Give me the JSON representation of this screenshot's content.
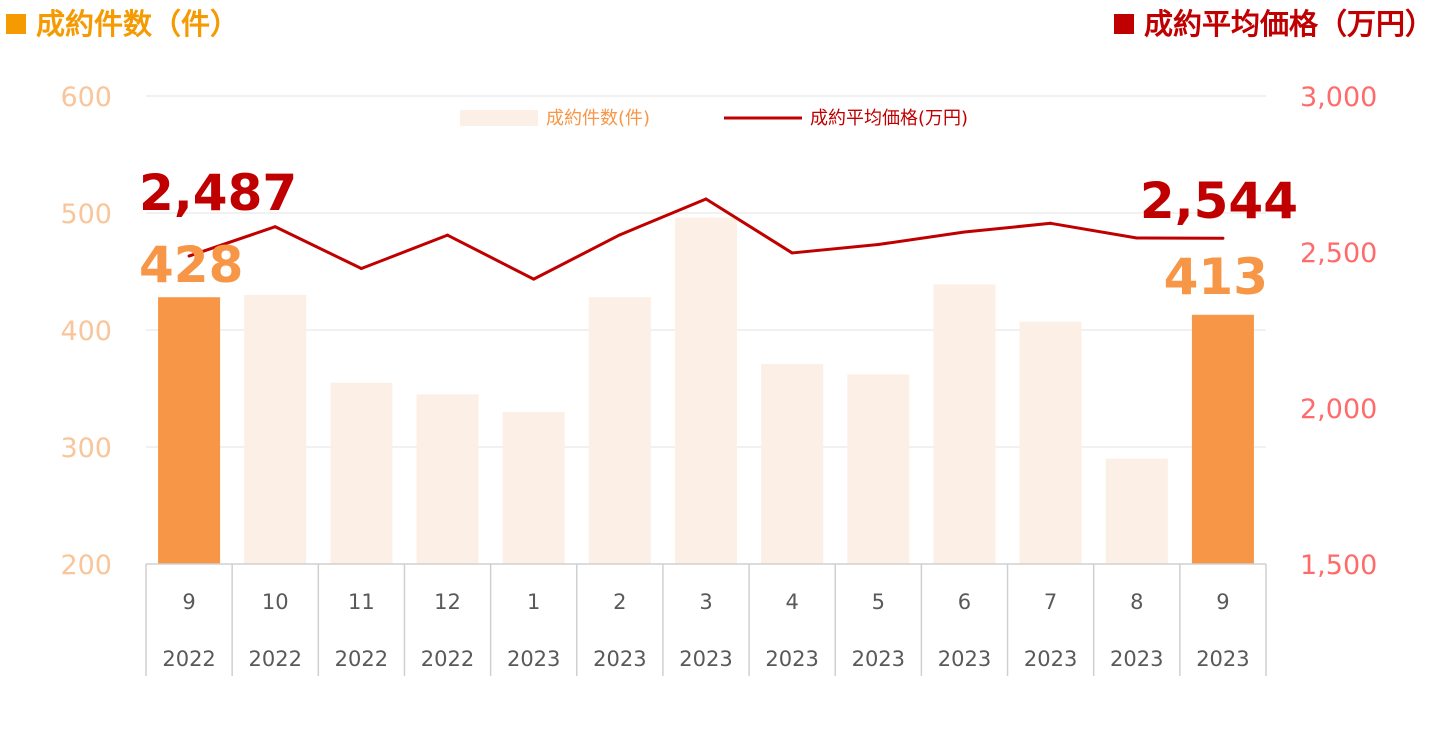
{
  "colors": {
    "bar_light": "#fcefe6",
    "bar_highlight": "#f79646",
    "line": "#c00000",
    "left_axis": "#f9c59a",
    "right_axis": "#ff6b6b",
    "title_left": "#f59a00",
    "title_right": "#c00000",
    "count_label": "#f79646",
    "price_label": "#c00000"
  },
  "titles": {
    "left": "成約件数（件）",
    "right": "成約平均価格（万円）"
  },
  "chart_data": {
    "type": "bar",
    "categories": [
      "9",
      "10",
      "11",
      "12",
      "1",
      "2",
      "3",
      "4",
      "5",
      "6",
      "7",
      "8",
      "9"
    ],
    "years": [
      "2022",
      "2022",
      "2022",
      "2022",
      "2023",
      "2023",
      "2023",
      "2023",
      "2023",
      "2023",
      "2023",
      "2023",
      "2023"
    ],
    "series": [
      {
        "name": "成約件数(件)",
        "kind": "bar",
        "axis": "left",
        "values": [
          428,
          430,
          355,
          345,
          330,
          428,
          496,
          371,
          362,
          439,
          407,
          290,
          413
        ],
        "highlight": [
          true,
          false,
          false,
          false,
          false,
          false,
          false,
          false,
          false,
          false,
          false,
          false,
          true
        ]
      },
      {
        "name": "成約平均価格(万円)",
        "kind": "line",
        "axis": "right",
        "values": [
          2487,
          2581,
          2447,
          2554,
          2413,
          2555,
          2670,
          2497,
          2524,
          2564,
          2592,
          2545,
          2544
        ]
      }
    ],
    "left_axis": {
      "ylim": [
        200,
        600
      ],
      "ticks": [
        "200",
        "300",
        "400",
        "500",
        "600"
      ]
    },
    "right_axis": {
      "ylim": [
        1500,
        3000
      ],
      "ticks": [
        "1,500",
        "2,000",
        "2,500",
        "3,000"
      ]
    },
    "grid": true,
    "legend_position": "top-center",
    "annotations": {
      "first_price": "2,487",
      "first_count": "428",
      "last_price": "2,544",
      "last_count": "413"
    }
  }
}
